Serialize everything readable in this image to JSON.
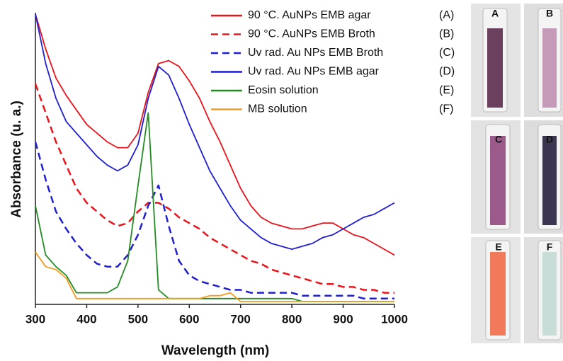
{
  "chart_data": {
    "type": "line",
    "xlabel": "Wavelength (nm)",
    "ylabel": "Absorbance (u. a.)",
    "xlim": [
      300,
      1000
    ],
    "xticks": [
      300,
      400,
      500,
      600,
      700,
      800,
      900,
      1000
    ],
    "ylim": [
      0,
      1
    ],
    "x": [
      300,
      320,
      340,
      360,
      380,
      400,
      420,
      440,
      460,
      480,
      500,
      520,
      540,
      560,
      580,
      600,
      620,
      640,
      660,
      680,
      700,
      720,
      740,
      760,
      780,
      800,
      820,
      840,
      860,
      880,
      900,
      920,
      940,
      960,
      980,
      1000
    ],
    "series": [
      {
        "name": "90 °C. AuNPs EMB agar",
        "tag": "(A)",
        "color": "#e8141b",
        "dash": false,
        "values": [
          1.0,
          0.88,
          0.78,
          0.72,
          0.67,
          0.62,
          0.59,
          0.56,
          0.54,
          0.54,
          0.59,
          0.73,
          0.83,
          0.84,
          0.82,
          0.77,
          0.71,
          0.63,
          0.56,
          0.48,
          0.4,
          0.34,
          0.3,
          0.28,
          0.27,
          0.26,
          0.26,
          0.27,
          0.28,
          0.28,
          0.26,
          0.24,
          0.23,
          0.21,
          0.19,
          0.17
        ]
      },
      {
        "name": "90 °C. AuNPs EMB Broth",
        "tag": "(B)",
        "color": "#e8141b",
        "dash": true,
        "values": [
          0.76,
          0.66,
          0.56,
          0.48,
          0.4,
          0.35,
          0.32,
          0.29,
          0.27,
          0.28,
          0.32,
          0.35,
          0.35,
          0.33,
          0.3,
          0.28,
          0.26,
          0.23,
          0.21,
          0.19,
          0.17,
          0.15,
          0.14,
          0.12,
          0.11,
          0.1,
          0.09,
          0.08,
          0.07,
          0.07,
          0.06,
          0.06,
          0.05,
          0.05,
          0.04,
          0.04
        ]
      },
      {
        "name": "Uv rad. Au NPs EMB Broth",
        "tag": "(C)",
        "color": "#1f1fd0",
        "dash": true,
        "values": [
          0.56,
          0.43,
          0.32,
          0.26,
          0.21,
          0.17,
          0.14,
          0.13,
          0.13,
          0.17,
          0.24,
          0.34,
          0.41,
          0.27,
          0.15,
          0.1,
          0.08,
          0.07,
          0.06,
          0.05,
          0.05,
          0.04,
          0.04,
          0.04,
          0.04,
          0.04,
          0.03,
          0.03,
          0.03,
          0.03,
          0.03,
          0.03,
          0.02,
          0.02,
          0.02,
          0.02
        ]
      },
      {
        "name": "Uv rad. Au NPs EMB agar",
        "tag": "(D)",
        "color": "#1f1fd0",
        "dash": false,
        "values": [
          1.0,
          0.83,
          0.71,
          0.63,
          0.59,
          0.55,
          0.51,
          0.48,
          0.46,
          0.48,
          0.55,
          0.71,
          0.82,
          0.79,
          0.71,
          0.62,
          0.54,
          0.46,
          0.4,
          0.34,
          0.29,
          0.26,
          0.23,
          0.21,
          0.2,
          0.19,
          0.2,
          0.21,
          0.23,
          0.24,
          0.26,
          0.28,
          0.3,
          0.31,
          0.33,
          0.35
        ]
      },
      {
        "name": "Eosin solution",
        "tag": "(E)",
        "color": "#228b22",
        "dash": false,
        "values": [
          0.34,
          0.17,
          0.13,
          0.1,
          0.04,
          0.04,
          0.04,
          0.04,
          0.06,
          0.15,
          0.41,
          0.66,
          0.05,
          0.02,
          0.02,
          0.02,
          0.02,
          0.02,
          0.02,
          0.02,
          0.02,
          0.02,
          0.02,
          0.02,
          0.02,
          0.02,
          0.01,
          0.01,
          0.01,
          0.01,
          0.01,
          0.01,
          0.01,
          0.01,
          0.01,
          0.01
        ]
      },
      {
        "name": "MB solution",
        "tag": "(F)",
        "color": "#f39c1f",
        "dash": false,
        "values": [
          0.18,
          0.13,
          0.12,
          0.09,
          0.02,
          0.02,
          0.02,
          0.02,
          0.02,
          0.02,
          0.02,
          0.02,
          0.02,
          0.02,
          0.02,
          0.02,
          0.02,
          0.03,
          0.03,
          0.04,
          0.01,
          0.01,
          0.01,
          0.01,
          0.01,
          0.01,
          0.01,
          0.01,
          0.01,
          0.01,
          0.01,
          0.01,
          0.01,
          0.01,
          0.01,
          0.01
        ]
      }
    ]
  },
  "photos": {
    "labels": [
      "A",
      "B",
      "C",
      "D",
      "E",
      "F"
    ]
  }
}
